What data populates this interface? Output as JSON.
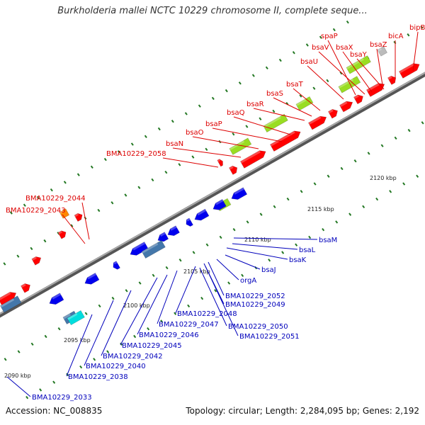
{
  "title": "Burkholderia mallei NCTC 10229 chromosome II, complete seque...",
  "footer": {
    "accession": "Accession: NC_008835",
    "info": "Topology: circular; Length: 2,284,095 bp; Genes: 2,192"
  },
  "colors": {
    "forward_gene": "#ff0000",
    "reverse_gene": "#0000ee",
    "highlight_gene": "#99dd22",
    "steel_gene": "#4477aa",
    "cyan_gene": "#00dddd",
    "orange_gene": "#ff8800",
    "gray_gene": "#bbbbbb",
    "tick": "#227722",
    "red_label": "#dd0000",
    "blue_label": "#0000bb"
  },
  "ticks": [
    {
      "label": "2090 kbp"
    },
    {
      "label": "2095 kbp"
    },
    {
      "label": "2100 kbp"
    },
    {
      "label": "2105 kbp"
    },
    {
      "label": "2110 kbp"
    },
    {
      "label": "2115 kbp"
    },
    {
      "label": "2120 kbp"
    }
  ],
  "top_labels": [
    {
      "text": "bipB"
    },
    {
      "text": "bicA"
    },
    {
      "text": "spaP"
    },
    {
      "text": "bsaX"
    },
    {
      "text": "bsaV"
    },
    {
      "text": "bsaY"
    },
    {
      "text": "bsaZ"
    },
    {
      "text": "bsaU"
    },
    {
      "text": "bsaT"
    },
    {
      "text": "bsaS"
    },
    {
      "text": "bsaR"
    },
    {
      "text": "bsaQ"
    },
    {
      "text": "bsaP"
    },
    {
      "text": "bsaO"
    },
    {
      "text": "bsaN"
    },
    {
      "text": "BMA10229_2058"
    },
    {
      "text": "BMA10229_2044"
    },
    {
      "text": "BMA10229_2043"
    }
  ],
  "bottom_labels": [
    {
      "text": "bsaM"
    },
    {
      "text": "bsaL"
    },
    {
      "text": "bsaK"
    },
    {
      "text": "bsaJ"
    },
    {
      "text": "orgA"
    },
    {
      "text": "BMA10229_2052"
    },
    {
      "text": "BMA10229_2049"
    },
    {
      "text": "BMA10229_2048"
    },
    {
      "text": "BMA10229_2047"
    },
    {
      "text": "BMA10229_2050"
    },
    {
      "text": "BMA10229_2046"
    },
    {
      "text": "BMA10229_2051"
    },
    {
      "text": "BMA10229_2045"
    },
    {
      "text": "BMA10229_2042"
    },
    {
      "text": "BMA10229_2040"
    },
    {
      "text": "BMA10229_2038"
    },
    {
      "text": "BMA10229_2033"
    }
  ]
}
